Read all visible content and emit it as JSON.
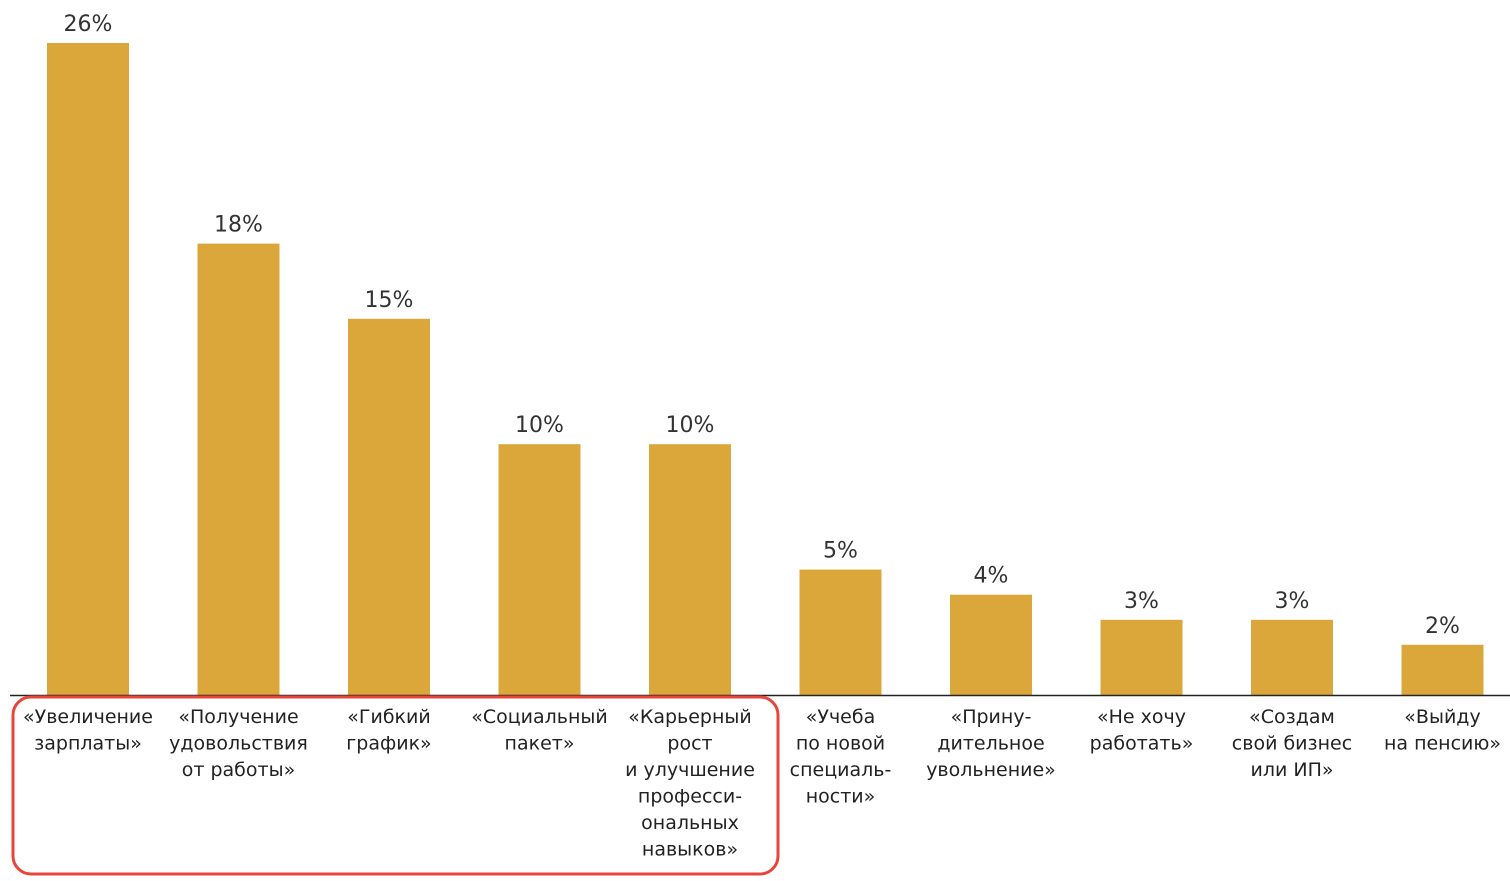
{
  "chart_data": {
    "type": "bar",
    "title": "",
    "xlabel": "",
    "ylabel": "",
    "unit": "%",
    "ylim": [
      0,
      26
    ],
    "grid": false,
    "legend": "none",
    "bar_color": "#DBA73B",
    "axis_color": "#222222",
    "highlight_color": "#E8463A",
    "categories": [
      "«Увеличение зарплаты»",
      "«Получение удовольствия от работы»",
      "«Гибкий график»",
      "«Социальный пакет»",
      "«Карьерный рост и улучшение профессиональных навыков»",
      "«Учеба по новой специальности»",
      "«Принудительное увольнение»",
      "«Не хочу работать»",
      "«Создам свой бизнес или ИП»",
      "«Выйду на пенсию»"
    ],
    "category_lines": [
      [
        "«Увеличение",
        "зарплаты»"
      ],
      [
        "«Получение",
        "удовольствия",
        "от работы»"
      ],
      [
        "«Гибкий",
        "график»"
      ],
      [
        "«Социальный",
        "пакет»"
      ],
      [
        "«Карьерный",
        "рост",
        "и улучшение",
        "професси-",
        "ональных",
        "навыков»"
      ],
      [
        "«Учеба",
        "по новой",
        "специаль-",
        "ности»"
      ],
      [
        "«Прину-",
        "дительное",
        "увольнение»"
      ],
      [
        "«Не хочу",
        "работать»"
      ],
      [
        "«Создам",
        "свой бизнес",
        "или ИП»"
      ],
      [
        "«Выйду",
        "на пенсию»"
      ]
    ],
    "values": [
      26,
      18,
      15,
      10,
      10,
      5,
      4,
      3,
      3,
      2
    ],
    "value_labels": [
      "26%",
      "18%",
      "15%",
      "10%",
      "10%",
      "5%",
      "4%",
      "3%",
      "3%",
      "2%"
    ],
    "highlighted_categories": [
      0,
      1,
      2,
      3,
      4
    ]
  }
}
